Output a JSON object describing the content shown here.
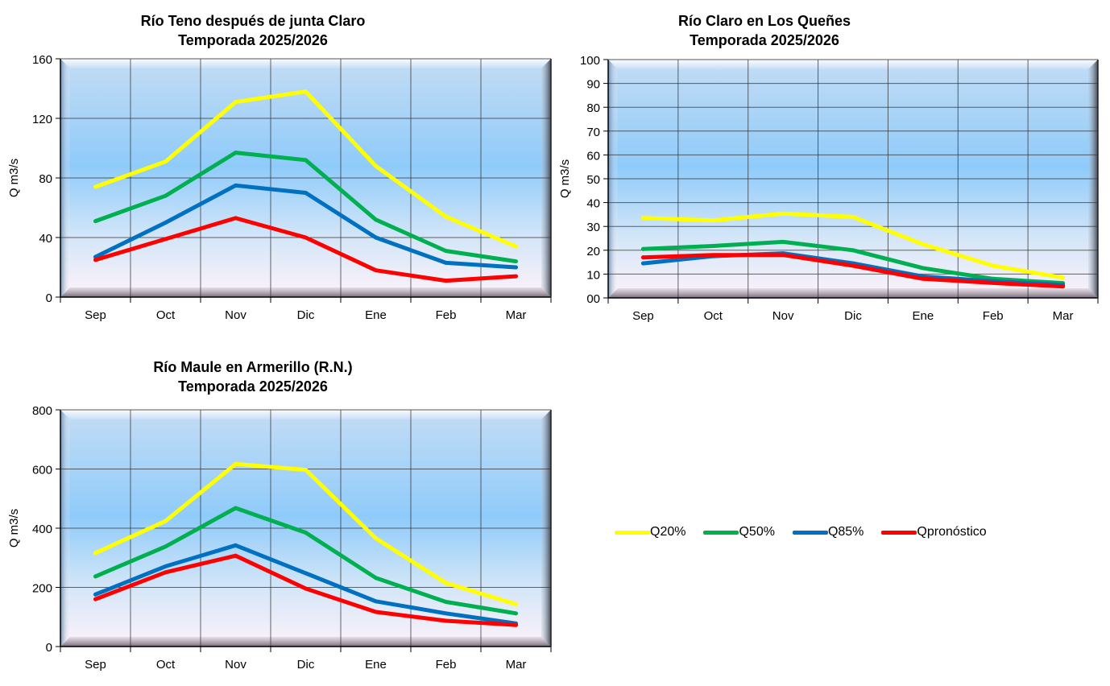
{
  "legend": [
    {
      "name": "Q20%",
      "color": "#FFFF00"
    },
    {
      "name": "Q50%",
      "color": "#00B050"
    },
    {
      "name": "Q85%",
      "color": "#0070C0"
    },
    {
      "name": "Qpronóstico",
      "color": "#FF0000"
    }
  ],
  "chart_data": [
    {
      "type": "line",
      "title": "Río Teno después de junta Claro",
      "subtitle": "Temporada 2025/2026",
      "xlabel": "",
      "ylabel": "Q m3/s",
      "categories": [
        "Sep",
        "Oct",
        "Nov",
        "Dic",
        "Ene",
        "Feb",
        "Mar"
      ],
      "ylim": [
        0,
        160
      ],
      "yticks": [
        0,
        40,
        80,
        120,
        160
      ],
      "ytick_labels": [
        "0",
        "40",
        "80",
        "120",
        "160"
      ],
      "grid": true,
      "series": [
        {
          "name": "Q20%",
          "values": [
            74,
            91,
            131,
            138,
            88,
            54,
            34
          ]
        },
        {
          "name": "Q50%",
          "values": [
            51,
            68,
            97,
            92,
            52,
            31,
            24
          ]
        },
        {
          "name": "Q85%",
          "values": [
            27,
            50,
            75,
            70,
            40,
            23,
            20
          ]
        },
        {
          "name": "Qpronóstico",
          "values": [
            25,
            39,
            53,
            40,
            18,
            11,
            14
          ]
        }
      ]
    },
    {
      "type": "line",
      "title": "Río Claro en Los Queñes",
      "subtitle": "Temporada 2025/2026",
      "xlabel": "",
      "ylabel": "Q m3/s",
      "categories": [
        "Sep",
        "Oct",
        "Nov",
        "Dic",
        "Ene",
        "Feb",
        "Mar"
      ],
      "ylim": [
        0,
        100
      ],
      "yticks": [
        0,
        10,
        20,
        30,
        40,
        50,
        60,
        70,
        80,
        90,
        100
      ],
      "ytick_labels": [
        "00",
        "10",
        "20",
        "30",
        "40",
        "50",
        "60",
        "70",
        "80",
        "90",
        "100"
      ],
      "grid": true,
      "series": [
        {
          "name": "Q20%",
          "values": [
            33.5,
            32.5,
            35.4,
            34,
            22.5,
            13.5,
            8.5
          ]
        },
        {
          "name": "Q50%",
          "values": [
            20.5,
            21.8,
            23.5,
            20,
            12.5,
            8,
            6.2
          ]
        },
        {
          "name": "Q85%",
          "values": [
            14.5,
            17.5,
            18.7,
            14.5,
            9,
            7,
            5.5
          ]
        },
        {
          "name": "Qpronóstico",
          "values": [
            17,
            18,
            18,
            13.5,
            8,
            6.3,
            4.8
          ]
        }
      ]
    },
    {
      "type": "line",
      "title": "Río Maule en Armerillo (R.N.)",
      "subtitle": "Temporada 2025/2026",
      "xlabel": "",
      "ylabel": "Q m3/s",
      "categories": [
        "Sep",
        "Oct",
        "Nov",
        "Dic",
        "Ene",
        "Feb",
        "Mar"
      ],
      "ylim": [
        0,
        800
      ],
      "yticks": [
        0,
        200,
        400,
        600,
        800
      ],
      "ytick_labels": [
        "0",
        "200",
        "400",
        "600",
        "800"
      ],
      "grid": true,
      "series": [
        {
          "name": "Q20%",
          "values": [
            316,
            424,
            617,
            597,
            366,
            215,
            143
          ]
        },
        {
          "name": "Q50%",
          "values": [
            237,
            338,
            468,
            385,
            232,
            151,
            112
          ]
        },
        {
          "name": "Q85%",
          "values": [
            176,
            271,
            342,
            248,
            153,
            112,
            78
          ]
        },
        {
          "name": "Qpronóstico",
          "values": [
            160,
            251,
            307,
            196,
            117,
            87,
            73
          ]
        }
      ]
    }
  ]
}
